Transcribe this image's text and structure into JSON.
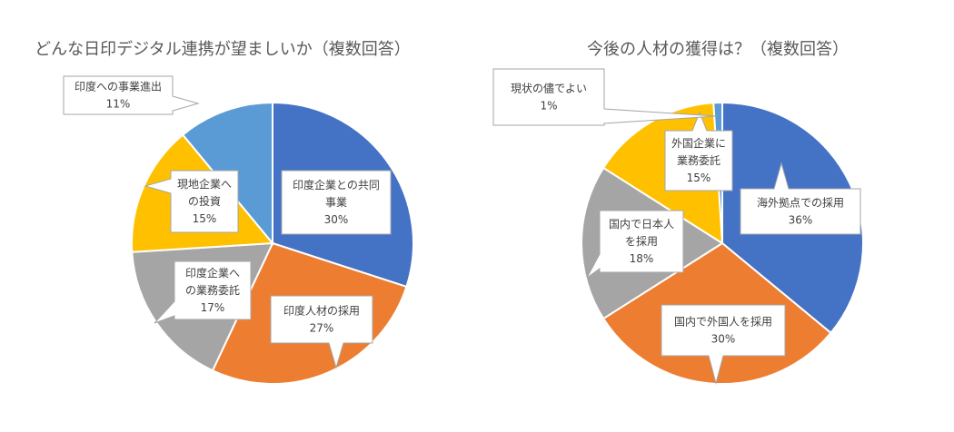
{
  "chart_data": [
    {
      "type": "pie",
      "title": "どんな日印デジタル連携が望ましいか（複数回答）",
      "slices": [
        {
          "label_lines": [
            "印度企業との共同",
            "事業"
          ],
          "value": 30,
          "value_label": "30%",
          "color": "#4472C4"
        },
        {
          "label_lines": [
            "印度人材の採用"
          ],
          "value": 27,
          "value_label": "27%",
          "color": "#ED7D31"
        },
        {
          "label_lines": [
            "印度企業へ",
            "の業務委託"
          ],
          "value": 17,
          "value_label": "17%",
          "color": "#A5A5A5"
        },
        {
          "label_lines": [
            "現地企業へ",
            "の投資"
          ],
          "value": 15,
          "value_label": "15%",
          "color": "#FFC000"
        },
        {
          "label_lines": [
            "印度への事業進出"
          ],
          "value": 11,
          "value_label": "11%",
          "color": "#5B9BD5"
        }
      ]
    },
    {
      "type": "pie",
      "title": "今後の人材の獲得は？（複数回答）",
      "slices": [
        {
          "label_lines": [
            "海外拠点での採用"
          ],
          "value": 36,
          "value_label": "36%",
          "color": "#4472C4"
        },
        {
          "label_lines": [
            "国内で外国人を採用"
          ],
          "value": 30,
          "value_label": "30%",
          "color": "#ED7D31"
        },
        {
          "label_lines": [
            "国内で日本人",
            "を採用"
          ],
          "value": 18,
          "value_label": "18%",
          "color": "#A5A5A5"
        },
        {
          "label_lines": [
            "外国企業に",
            "業務委託"
          ],
          "value": 15,
          "value_label": "15%",
          "color": "#FFC000"
        },
        {
          "label_lines": [
            "現状の儘でよい"
          ],
          "value": 1,
          "value_label": "1%",
          "color": "#5B9BD5"
        }
      ]
    }
  ]
}
